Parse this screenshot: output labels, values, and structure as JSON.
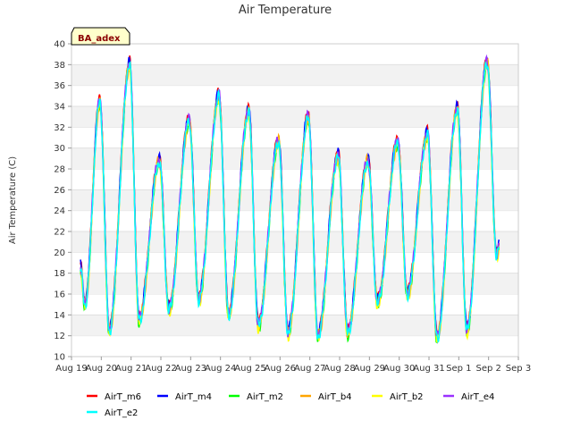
{
  "chart_data": {
    "type": "line",
    "title": "Air Temperature",
    "xlabel": "",
    "ylabel": "Air Temperature (C)",
    "site_label": "BA_adex",
    "ylim": [
      10,
      40
    ],
    "xlim": [
      0,
      15
    ],
    "yticks": [
      10,
      12,
      14,
      16,
      18,
      20,
      22,
      24,
      26,
      28,
      30,
      32,
      34,
      36,
      38,
      40
    ],
    "xticks": [
      {
        "pos": 0,
        "label": "Aug 19"
      },
      {
        "pos": 1,
        "label": "Aug 20"
      },
      {
        "pos": 2,
        "label": "Aug 21"
      },
      {
        "pos": 3,
        "label": "Aug 22"
      },
      {
        "pos": 4,
        "label": "Aug 23"
      },
      {
        "pos": 5,
        "label": "Aug 24"
      },
      {
        "pos": 6,
        "label": "Aug 25"
      },
      {
        "pos": 7,
        "label": "Aug 26"
      },
      {
        "pos": 8,
        "label": "Aug 27"
      },
      {
        "pos": 9,
        "label": "Aug 28"
      },
      {
        "pos": 10,
        "label": "Aug 29"
      },
      {
        "pos": 11,
        "label": "Aug 30"
      },
      {
        "pos": 12,
        "label": "Aug 31"
      },
      {
        "pos": 13,
        "label": "Sep 1"
      },
      {
        "pos": 14,
        "label": "Sep 2"
      },
      {
        "pos": 15,
        "label": "Sep 3"
      }
    ],
    "grid_bands": true,
    "legend_position": "bottom",
    "daily_extremes": {
      "day_start": [
        0.3,
        1.0,
        2.0,
        3.0,
        4.0,
        5.0,
        6.0,
        7.0,
        8.0,
        9.0,
        10.0,
        11.0,
        12.0,
        13.0,
        14.0
      ],
      "min_time": [
        0.45,
        1.27,
        2.27,
        3.27,
        4.27,
        5.27,
        6.27,
        7.27,
        8.27,
        9.27,
        10.27,
        11.27,
        12.27,
        13.27,
        14.27
      ],
      "min": [
        15.0,
        12.5,
        13.5,
        14.5,
        15.5,
        14.0,
        13.0,
        12.3,
        12.0,
        12.3,
        15.2,
        16.0,
        11.8,
        12.5,
        19.8
      ],
      "max_time": [
        0.95,
        1.95,
        2.95,
        3.95,
        4.95,
        5.95,
        6.95,
        7.95,
        8.95,
        9.95,
        10.95,
        11.95,
        12.95,
        13.95
      ],
      "max": [
        34.5,
        38.0,
        28.8,
        32.7,
        35.0,
        33.6,
        30.7,
        33.0,
        29.3,
        28.8,
        30.6,
        31.3,
        33.8,
        38.3
      ],
      "end_time": 14.35,
      "end_value": 20.5
    },
    "series": [
      {
        "name": "AirT_m6",
        "color": "#ff0000",
        "offset": 0.3
      },
      {
        "name": "AirT_m4",
        "color": "#0000ff",
        "offset": 0.2
      },
      {
        "name": "AirT_m2",
        "color": "#00ff00",
        "offset": -0.2
      },
      {
        "name": "AirT_b4",
        "color": "#ffa500",
        "offset": 0.0
      },
      {
        "name": "AirT_b2",
        "color": "#ffff00",
        "offset": -0.3
      },
      {
        "name": "AirT_e4",
        "color": "#9b30ff",
        "offset": 0.1
      },
      {
        "name": "AirT_e2",
        "color": "#00ffff",
        "offset": -0.1
      }
    ]
  }
}
